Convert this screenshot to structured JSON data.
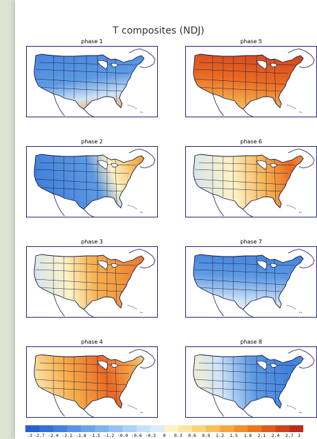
{
  "title": "T composites (NDJ)",
  "panels": [
    {
      "id": "phase1",
      "title": "phase 1",
      "col": 0,
      "row": 0,
      "mode": "cold_north_warm_south",
      "color": "#6aa6e6"
    },
    {
      "id": "phase5",
      "title": "phase 5",
      "col": 1,
      "row": 0,
      "mode": "warm_north",
      "color": "#f08a2a"
    },
    {
      "id": "phase2",
      "title": "phase 2",
      "col": 0,
      "row": 1,
      "mode": "cold_west_warm_east",
      "color": "#7ab0ea"
    },
    {
      "id": "phase6",
      "title": "phase 6",
      "col": 1,
      "row": 1,
      "mode": "warm_east_strong",
      "color": "#f0a040"
    },
    {
      "id": "phase3",
      "title": "phase 3",
      "col": 0,
      "row": 2,
      "mode": "warm_east",
      "color": "#f2b554"
    },
    {
      "id": "phase7",
      "title": "phase 7",
      "col": 1,
      "row": 2,
      "mode": "cold_north",
      "color": "#7cb4ec"
    },
    {
      "id": "phase4",
      "title": "phase 4",
      "col": 0,
      "row": 3,
      "mode": "warm_central",
      "color": "#f0a040"
    },
    {
      "id": "phase8",
      "title": "phase 8",
      "col": 1,
      "row": 3,
      "mode": "cold_east",
      "color": "#6aa6e6"
    }
  ],
  "colorbar": {
    "labels": [
      "-3",
      "-2.7",
      "-2.4",
      "-2.1",
      "-1.8",
      "-1.5",
      "-1.2",
      "-0.9",
      "-0.6",
      "-0.3",
      "0",
      "0.3",
      "0.6",
      "0.9",
      "1.2",
      "1.5",
      "1.8",
      "2.1",
      "2.4",
      "2.7",
      "3"
    ],
    "colors": [
      "#2a5fcf",
      "#3670d8",
      "#4780df",
      "#5a92e5",
      "#6ca2ea",
      "#80b2ee",
      "#96c2f2",
      "#aed2f6",
      "#c6e0f8",
      "#dcecfa",
      "#fdf3c8",
      "#fbe6a2",
      "#f8d47e",
      "#f6bf5e",
      "#f3a843",
      "#ef902f",
      "#e97623",
      "#df5c1f",
      "#cf421e",
      "#b82c1d"
    ]
  }
}
